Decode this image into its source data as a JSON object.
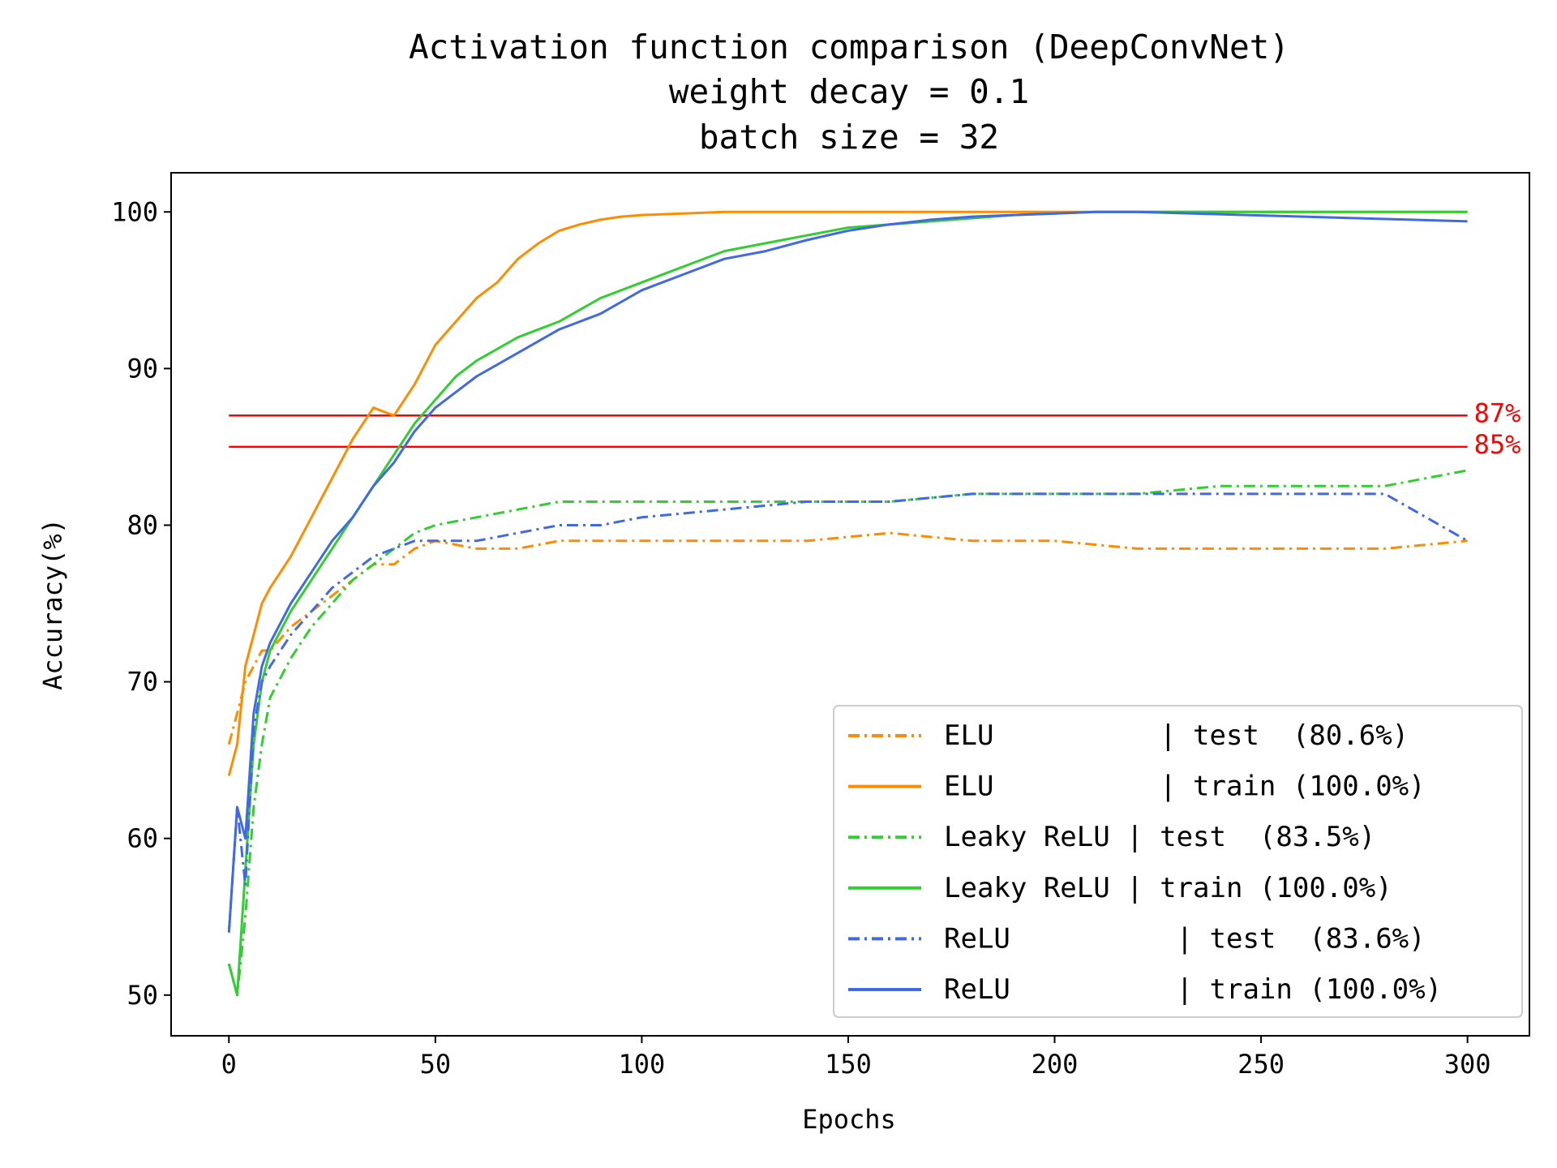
{
  "chart_data": {
    "type": "line",
    "title_lines": [
      "Activation function comparison (DeepConvNet)",
      "weight decay = 0.1",
      "batch size = 32"
    ],
    "xlabel": "Epochs",
    "ylabel": "Accuracy(%)",
    "xlim": [
      -14,
      315
    ],
    "ylim": [
      47.4,
      102.5
    ],
    "xticks": [
      0,
      50,
      100,
      150,
      200,
      250,
      300
    ],
    "yticks": [
      50,
      60,
      70,
      80,
      90,
      100
    ],
    "grid": false,
    "legend_position": "lower-right",
    "reference_lines": [
      {
        "y": 87,
        "label": "87%",
        "color": "#ff0000"
      },
      {
        "y": 85,
        "label": "85%",
        "color": "#ff0000"
      }
    ],
    "series": [
      {
        "name": "ELU          | test  (80.6%)",
        "color": "#ff8c00",
        "dash": "dashdot",
        "x": [
          0,
          2,
          4,
          6,
          8,
          10,
          15,
          20,
          25,
          30,
          35,
          40,
          45,
          50,
          60,
          70,
          80,
          90,
          100,
          120,
          140,
          160,
          180,
          200,
          220,
          240,
          260,
          280,
          300
        ],
        "y": [
          66,
          68,
          70,
          71,
          72,
          72,
          73.5,
          74.5,
          75.5,
          76.5,
          77.5,
          77.5,
          78.5,
          79,
          78.5,
          78.5,
          79,
          79,
          79,
          79,
          79,
          79.5,
          79,
          79,
          78.5,
          78.5,
          78.5,
          78.5,
          79
        ]
      },
      {
        "name": "ELU          | train (100.0%)",
        "color": "#ff8c00",
        "dash": "solid",
        "x": [
          0,
          2,
          4,
          6,
          8,
          10,
          15,
          20,
          25,
          30,
          35,
          40,
          45,
          50,
          55,
          60,
          65,
          70,
          75,
          80,
          85,
          90,
          95,
          100,
          110,
          120,
          130,
          300
        ],
        "y": [
          64,
          66,
          71,
          73,
          75,
          76,
          78,
          80.5,
          83,
          85.5,
          87.5,
          87,
          89,
          91.5,
          93,
          94.5,
          95.5,
          97,
          98,
          98.8,
          99.2,
          99.5,
          99.7,
          99.8,
          99.9,
          100,
          100,
          100
        ]
      },
      {
        "name": "Leaky ReLU | test  (83.5%)",
        "color": "#32cd32",
        "dash": "dashdot",
        "x": [
          0,
          2,
          4,
          6,
          8,
          10,
          15,
          20,
          25,
          30,
          35,
          40,
          45,
          50,
          60,
          70,
          80,
          90,
          100,
          120,
          140,
          160,
          180,
          200,
          220,
          240,
          260,
          280,
          300
        ],
        "y": [
          52,
          50,
          55,
          62,
          66,
          69,
          71.5,
          73.5,
          75,
          76.5,
          77.5,
          78.5,
          79.5,
          80,
          80.5,
          81,
          81.5,
          81.5,
          81.5,
          81.5,
          81.5,
          81.5,
          82,
          82,
          82,
          82.5,
          82.5,
          82.5,
          83.5
        ]
      },
      {
        "name": "Leaky ReLU | train (100.0%)",
        "color": "#32cd32",
        "dash": "solid",
        "x": [
          0,
          2,
          4,
          6,
          8,
          10,
          15,
          20,
          25,
          30,
          35,
          40,
          45,
          50,
          55,
          60,
          70,
          80,
          90,
          100,
          110,
          120,
          130,
          140,
          150,
          160,
          170,
          180,
          190,
          200,
          210,
          300
        ],
        "y": [
          52,
          50,
          58,
          66,
          70,
          72,
          74.5,
          76.5,
          78.5,
          80.5,
          82.5,
          84.5,
          86.5,
          88,
          89.5,
          90.5,
          92,
          93,
          94.5,
          95.5,
          96.5,
          97.5,
          98,
          98.5,
          99,
          99.2,
          99.4,
          99.6,
          99.8,
          99.9,
          100,
          100
        ]
      },
      {
        "name": "ReLU          | test  (83.6%)",
        "color": "#4169e1",
        "dash": "dashdot",
        "x": [
          0,
          2,
          4,
          6,
          8,
          10,
          15,
          20,
          25,
          30,
          35,
          40,
          45,
          50,
          60,
          70,
          80,
          90,
          100,
          120,
          140,
          160,
          180,
          200,
          220,
          240,
          260,
          280,
          300
        ],
        "y": [
          54,
          62,
          57,
          67,
          70,
          71,
          73,
          74.5,
          76,
          77,
          78,
          78.5,
          79,
          79,
          79,
          79.5,
          80,
          80,
          80.5,
          81,
          81.5,
          81.5,
          82,
          82,
          82,
          82,
          82,
          82,
          79
        ]
      },
      {
        "name": "ReLU          | train (100.0%)",
        "color": "#4169e1",
        "dash": "solid",
        "x": [
          0,
          2,
          4,
          6,
          8,
          10,
          15,
          20,
          25,
          30,
          35,
          40,
          45,
          50,
          55,
          60,
          70,
          80,
          90,
          100,
          110,
          120,
          130,
          140,
          150,
          160,
          170,
          180,
          190,
          200,
          210,
          220,
          300
        ],
        "y": [
          54,
          62,
          60,
          68,
          71,
          72.5,
          75,
          77,
          79,
          80.5,
          82.5,
          84,
          86,
          87.5,
          88.5,
          89.5,
          91,
          92.5,
          93.5,
          95,
          96,
          97,
          97.5,
          98.2,
          98.8,
          99.2,
          99.5,
          99.7,
          99.8,
          99.9,
          100,
          100,
          99.4
        ]
      }
    ]
  }
}
